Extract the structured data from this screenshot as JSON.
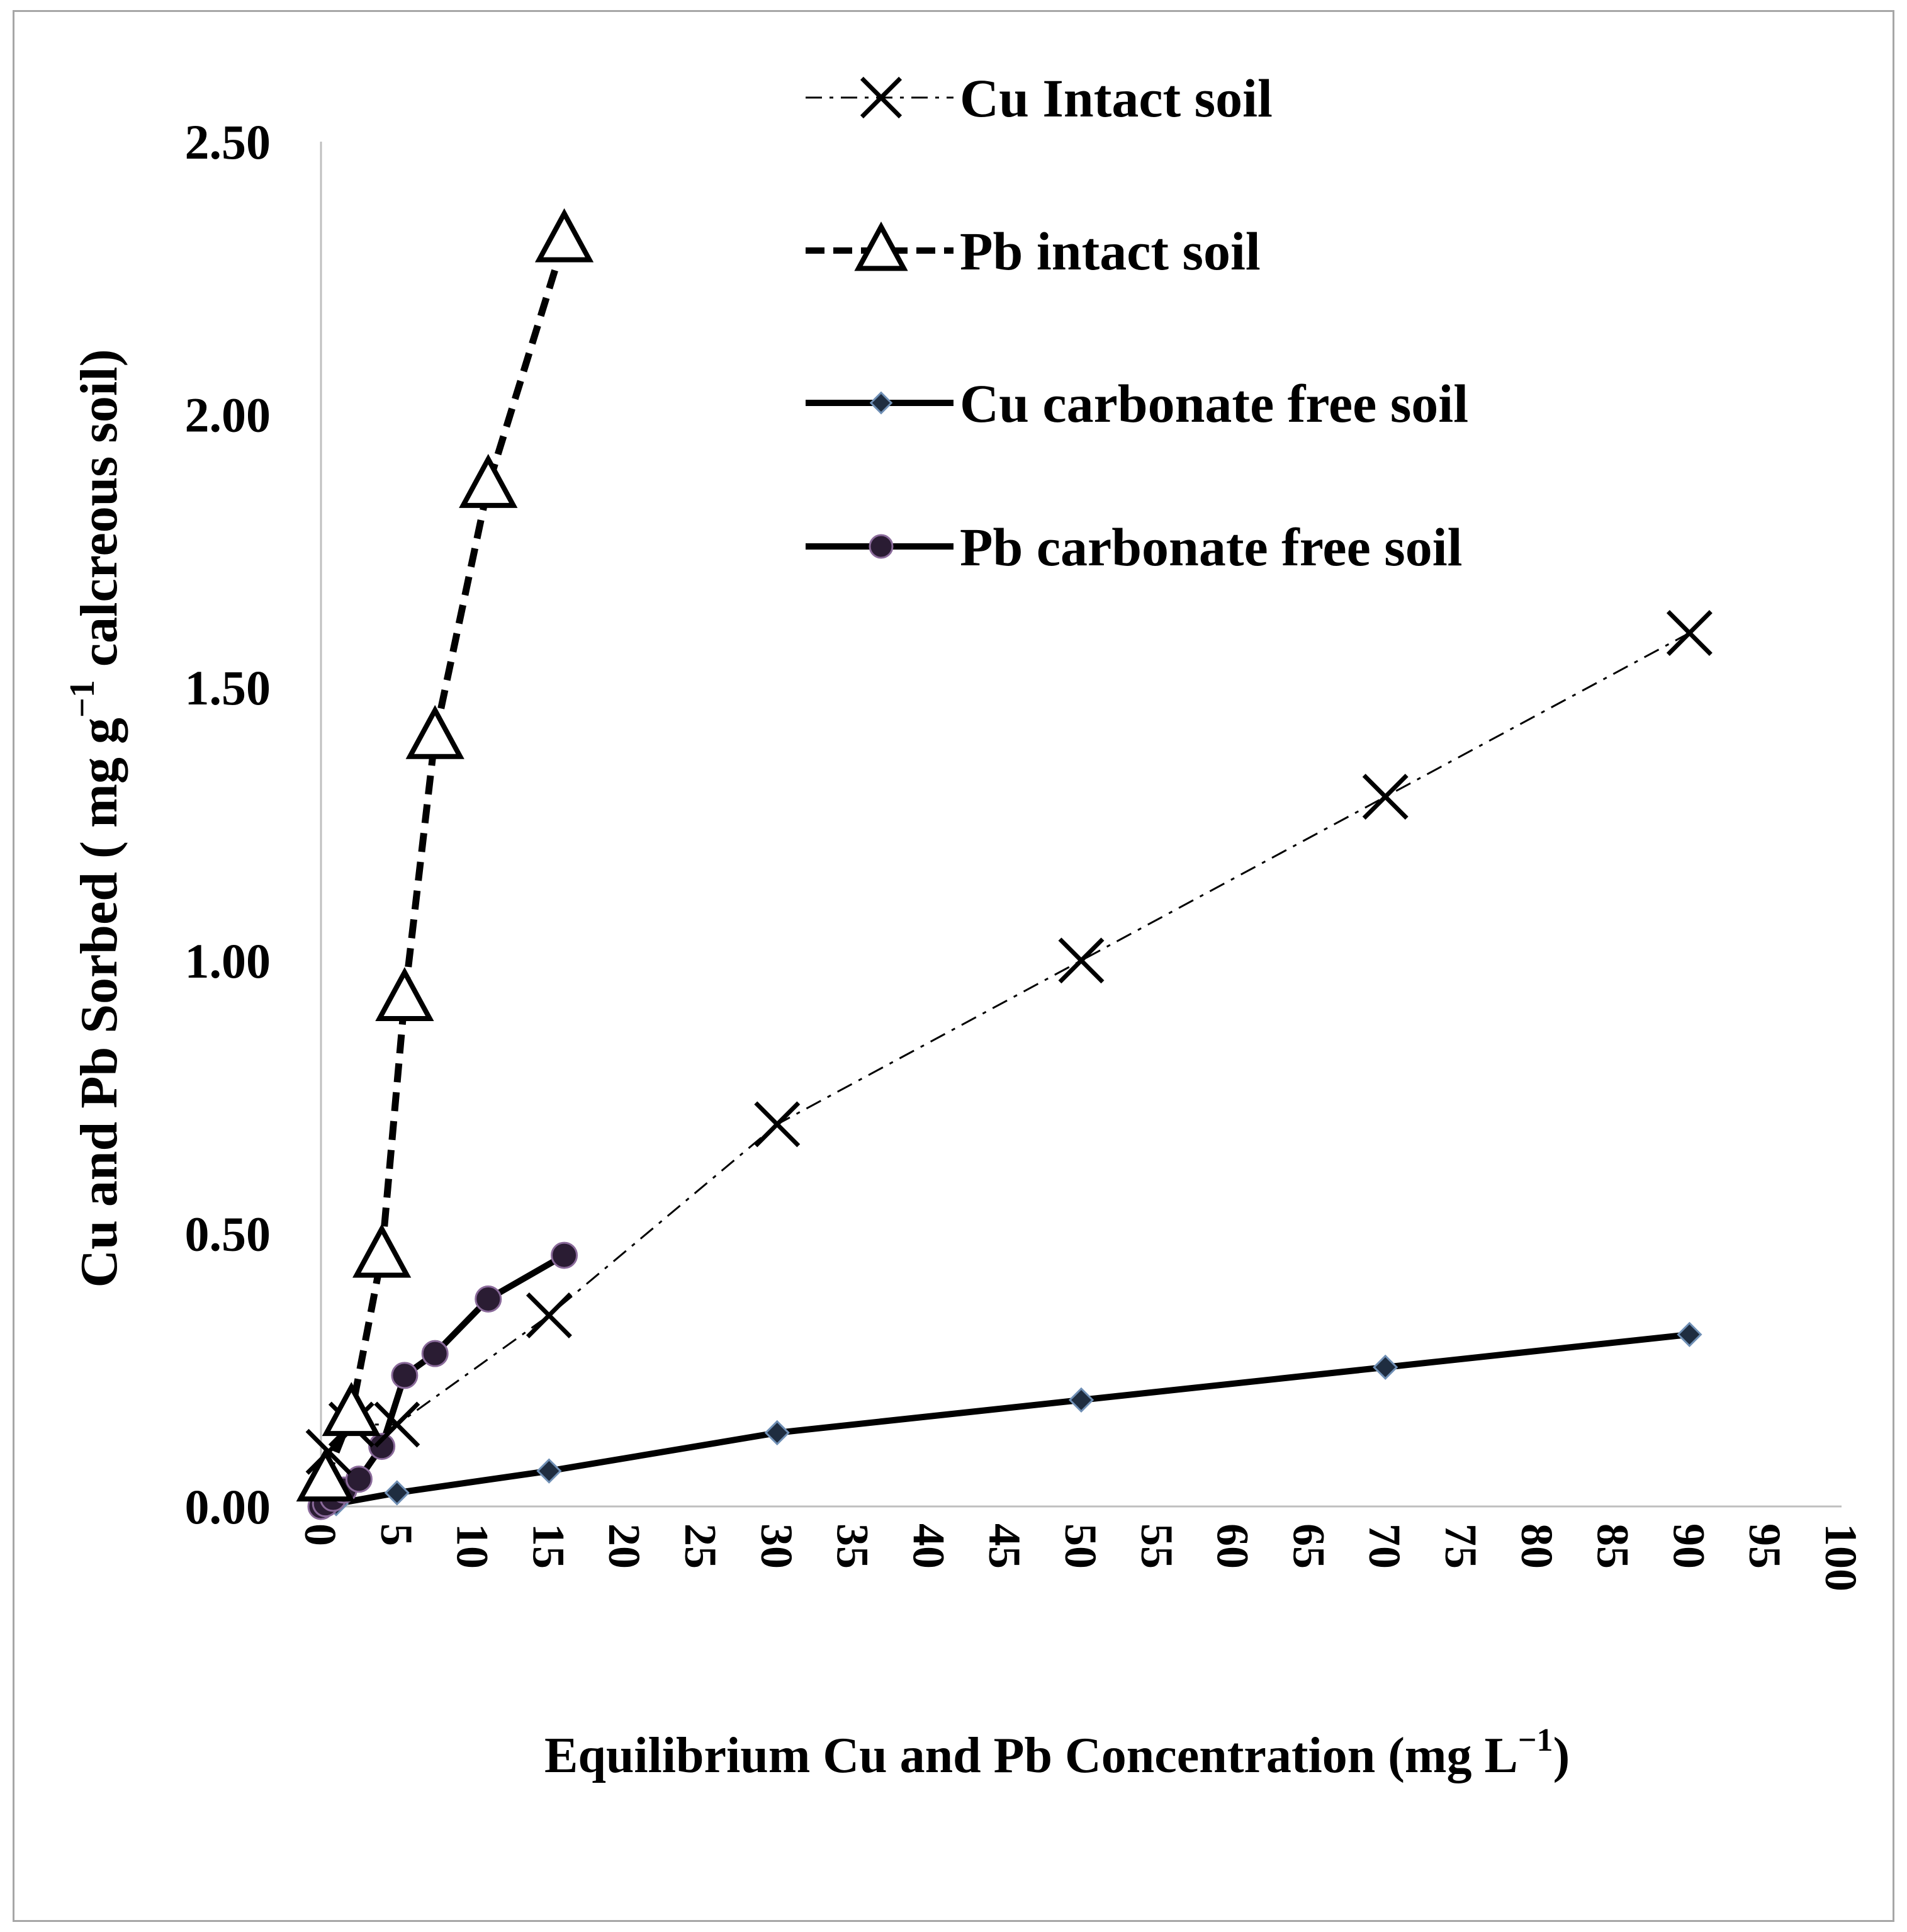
{
  "chart_data": {
    "type": "line",
    "title": "",
    "xlabel": "Equilibrium  Cu and Pb Concentration  (mg L",
    "xlabel_sup": "−1",
    "xlabel_tail": ")",
    "ylabel": "Cu and Pb Sorbed  ( mg g",
    "ylabel_sup": "−1",
    "ylabel_tail": " calcreous soil)",
    "xlim": [
      0,
      100
    ],
    "ylim": [
      0,
      2.5
    ],
    "x_ticks": [
      "0",
      "5",
      "10",
      "15",
      "20",
      "25",
      "30",
      "35",
      "40",
      "45",
      "50",
      "55",
      "60",
      "65",
      "70",
      "75",
      "80",
      "85",
      "90",
      "95",
      "100"
    ],
    "y_ticks": [
      "0.00",
      "0.50",
      "1.00",
      "1.50",
      "2.00",
      "2.50"
    ],
    "legend_position": "top-right",
    "series": [
      {
        "name": "Cu Intact soil",
        "marker": "x",
        "line": "dash-dot",
        "color": "#000000",
        "x": [
          0.5,
          2,
          5,
          15,
          30,
          50,
          70,
          90
        ],
        "y": [
          0.1,
          0.15,
          0.15,
          0.35,
          0.7,
          1.0,
          1.3,
          1.6
        ]
      },
      {
        "name": "Pb intact soil",
        "marker": "triangle",
        "line": "dashed",
        "color": "#000000",
        "x": [
          0.3,
          2,
          4,
          5.5,
          7.5,
          11,
          16
        ],
        "y": [
          0.05,
          0.17,
          0.46,
          0.93,
          1.41,
          1.87,
          2.32
        ]
      },
      {
        "name": "Cu carbonate free soil",
        "marker": "diamond",
        "line": "solid",
        "color": "#000000",
        "x": [
          0,
          1,
          5,
          15,
          30,
          50,
          70,
          90
        ],
        "y": [
          0,
          0.005,
          0.025,
          0.065,
          0.135,
          0.195,
          0.255,
          0.315
        ]
      },
      {
        "name": "Pb carbonate free soil",
        "marker": "circle",
        "line": "solid",
        "color": "#000000",
        "x": [
          0,
          0.3,
          0.8,
          1.5,
          2.5,
          4,
          5.5,
          7.5,
          11,
          16
        ],
        "y": [
          0,
          0.005,
          0.015,
          0.03,
          0.05,
          0.11,
          0.24,
          0.28,
          0.38,
          0.46
        ]
      }
    ]
  }
}
